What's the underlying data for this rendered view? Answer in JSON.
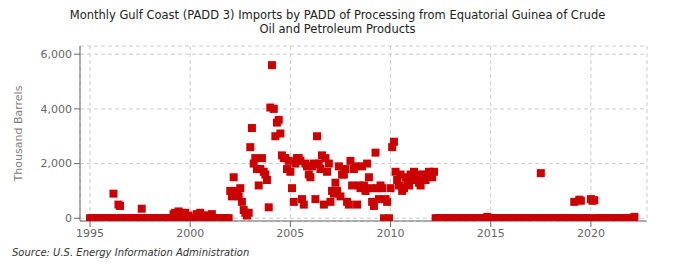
{
  "chart_data": {
    "type": "scatter",
    "title": "Monthly Gulf Coast (PADD 3) Imports by PADD of Processing from Equatorial Guinea of Crude\nOil and Petroleum Products",
    "ylabel": "Thousand Barrels",
    "annotations": [
      "Source: U.S. Energy Information Administration"
    ],
    "color": "#cc0000",
    "marker": "square",
    "grid": true,
    "xlim": [
      1994.5,
      2022.8
    ],
    "ylim": [
      -100,
      6300
    ],
    "xticks": [
      1995,
      2000,
      2005,
      2010,
      2015,
      2020
    ],
    "yticks": [
      0,
      {
        "value": 2000,
        "label": "2,000"
      },
      {
        "value": 4000,
        "label": "4,000"
      },
      {
        "value": 6000,
        "label": "6,000"
      }
    ],
    "x": [
      1995.0,
      1995.08,
      1995.17,
      1995.25,
      1995.33,
      1995.42,
      1995.5,
      1995.58,
      1995.67,
      1995.75,
      1995.83,
      1995.92,
      1996.0,
      1996.08,
      1996.17,
      1996.25,
      1996.33,
      1996.42,
      1996.5,
      1996.58,
      1996.67,
      1996.75,
      1996.83,
      1996.92,
      1997.0,
      1997.08,
      1997.17,
      1997.25,
      1997.33,
      1997.42,
      1997.5,
      1997.58,
      1997.67,
      1997.75,
      1997.83,
      1997.92,
      1998.0,
      1998.08,
      1998.17,
      1998.25,
      1998.33,
      1998.42,
      1998.5,
      1998.58,
      1998.67,
      1998.75,
      1998.83,
      1998.92,
      1999.0,
      1999.08,
      1999.17,
      1999.25,
      1999.33,
      1999.42,
      1999.5,
      1999.58,
      1999.67,
      1999.75,
      1999.83,
      1999.92,
      2000.0,
      2000.08,
      2000.17,
      2000.25,
      2000.33,
      2000.42,
      2000.5,
      2000.58,
      2000.67,
      2000.75,
      2000.83,
      2000.92,
      2001.0,
      2001.08,
      2001.17,
      2001.25,
      2001.33,
      2001.42,
      2001.5,
      2001.58,
      2001.67,
      2001.75,
      2001.83,
      2001.92,
      2002.0,
      2002.08,
      2002.17,
      2002.25,
      2002.33,
      2002.42,
      2002.5,
      2002.58,
      2002.67,
      2002.75,
      2002.83,
      2002.92,
      2003.0,
      2003.08,
      2003.17,
      2003.25,
      2003.33,
      2003.42,
      2003.5,
      2003.58,
      2003.67,
      2003.75,
      2003.83,
      2003.92,
      2004.0,
      2004.08,
      2004.17,
      2004.25,
      2004.33,
      2004.42,
      2004.5,
      2004.58,
      2004.67,
      2004.75,
      2004.83,
      2004.92,
      2005.0,
      2005.08,
      2005.17,
      2005.25,
      2005.33,
      2005.42,
      2005.5,
      2005.58,
      2005.67,
      2005.75,
      2005.83,
      2005.92,
      2006.0,
      2006.08,
      2006.17,
      2006.25,
      2006.33,
      2006.42,
      2006.5,
      2006.58,
      2006.67,
      2006.75,
      2006.83,
      2006.92,
      2007.0,
      2007.08,
      2007.17,
      2007.25,
      2007.33,
      2007.42,
      2007.5,
      2007.58,
      2007.67,
      2007.75,
      2007.83,
      2007.92,
      2008.0,
      2008.08,
      2008.17,
      2008.25,
      2008.33,
      2008.42,
      2008.5,
      2008.58,
      2008.67,
      2008.75,
      2008.83,
      2008.92,
      2009.0,
      2009.08,
      2009.17,
      2009.25,
      2009.33,
      2009.42,
      2009.5,
      2009.58,
      2009.67,
      2009.75,
      2009.83,
      2009.92,
      2010.0,
      2010.08,
      2010.17,
      2010.25,
      2010.33,
      2010.42,
      2010.5,
      2010.58,
      2010.67,
      2010.75,
      2010.83,
      2010.92,
      2011.0,
      2011.08,
      2011.17,
      2011.25,
      2011.33,
      2011.42,
      2011.5,
      2011.58,
      2011.67,
      2011.75,
      2011.83,
      2011.92,
      2012.0,
      2012.08,
      2012.17,
      2012.25,
      2012.33,
      2012.42,
      2012.5,
      2012.58,
      2012.67,
      2012.75,
      2012.83,
      2012.92,
      2013.0,
      2013.08,
      2013.17,
      2013.25,
      2013.33,
      2013.42,
      2013.5,
      2013.58,
      2013.67,
      2013.75,
      2013.83,
      2013.92,
      2014.0,
      2014.08,
      2014.17,
      2014.25,
      2014.33,
      2014.42,
      2014.5,
      2014.58,
      2014.67,
      2014.75,
      2014.83,
      2014.92,
      2015.0,
      2015.08,
      2015.17,
      2015.25,
      2015.33,
      2015.42,
      2015.5,
      2015.58,
      2015.67,
      2015.75,
      2015.83,
      2015.92,
      2016.0,
      2016.08,
      2016.17,
      2016.25,
      2016.33,
      2016.42,
      2016.5,
      2016.58,
      2016.67,
      2016.75,
      2016.83,
      2016.92,
      2017.0,
      2017.08,
      2017.17,
      2017.25,
      2017.33,
      2017.42,
      2017.5,
      2017.58,
      2017.67,
      2017.75,
      2017.83,
      2017.92,
      2018.0,
      2018.08,
      2018.17,
      2018.25,
      2018.33,
      2018.42,
      2018.5,
      2018.58,
      2018.67,
      2018.75,
      2018.83,
      2018.92,
      2019.0,
      2019.08,
      2019.17,
      2019.25,
      2019.33,
      2019.42,
      2019.5,
      2019.58,
      2019.67,
      2019.75,
      2019.83,
      2019.92,
      2020.0,
      2020.08,
      2020.17,
      2020.25,
      2020.33,
      2020.42,
      2020.5,
      2020.58,
      2020.67,
      2020.75,
      2020.83,
      2020.92,
      2021.0,
      2021.08,
      2021.17,
      2021.25,
      2021.33,
      2021.42,
      2021.5,
      2021.58,
      2021.67,
      2021.75,
      2021.83,
      2021.92,
      2022.0,
      2022.08,
      2022.17
    ],
    "values": [
      0,
      0,
      0,
      0,
      0,
      0,
      0,
      0,
      0,
      0,
      0,
      0,
      0,
      0,
      900,
      0,
      0,
      500,
      450,
      0,
      0,
      0,
      0,
      0,
      0,
      0,
      0,
      0,
      0,
      0,
      0,
      350,
      0,
      0,
      0,
      0,
      0,
      0,
      0,
      0,
      0,
      0,
      0,
      0,
      0,
      0,
      0,
      0,
      0,
      0,
      150,
      200,
      0,
      250,
      0,
      0,
      0,
      200,
      0,
      100,
      0,
      0,
      0,
      0,
      150,
      0,
      200,
      0,
      100,
      0,
      100,
      0,
      0,
      150,
      0,
      0,
      0,
      0,
      0,
      0,
      0,
      0,
      0,
      0,
      1000,
      800,
      1500,
      1000,
      900,
      800,
      1100,
      600,
      300,
      200,
      100,
      200,
      2600,
      3300,
      2000,
      2200,
      1800,
      1200,
      1800,
      2200,
      1700,
      1600,
      1400,
      400,
      4050,
      5600,
      4000,
      3000,
      3500,
      3600,
      3100,
      2300,
      2200,
      2200,
      1800,
      2100,
      1700,
      1100,
      600,
      2000,
      2200,
      2200,
      2100,
      700,
      500,
      2000,
      1900,
      1600,
      1500,
      1900,
      2000,
      700,
      3000,
      2000,
      1800,
      2300,
      500,
      2200,
      1700,
      2000,
      600,
      1000,
      900,
      1300,
      1000,
      1900,
      800,
      1600,
      1600,
      1800,
      600,
      500,
      2100,
      1200,
      1800,
      1900,
      500,
      1200,
      1100,
      1900,
      1200,
      1000,
      2000,
      1500,
      1100,
      600,
      450,
      2400,
      1100,
      700,
      1200,
      1100,
      0,
      700,
      600,
      0,
      1100,
      2600,
      2800,
      1700,
      1400,
      1200,
      1600,
      1000,
      1100,
      1500,
      1300,
      1200,
      1600,
      1400,
      1700,
      1500,
      1600,
      1300,
      1200,
      1500,
      1600,
      1400,
      1600,
      1700,
      1600,
      1500,
      1700,
      0,
      0,
      0,
      0,
      0,
      0,
      0,
      0,
      0,
      0,
      0,
      0,
      0,
      0,
      0,
      0,
      0,
      0,
      0,
      0,
      0,
      0,
      0,
      0,
      0,
      0,
      0,
      0,
      0,
      0,
      0,
      50,
      0,
      0,
      0,
      0,
      0,
      0,
      0,
      0,
      0,
      0,
      0,
      0,
      0,
      0,
      0,
      0,
      0,
      0,
      0,
      0,
      0,
      0,
      0,
      0,
      0,
      0,
      0,
      0,
      0,
      0,
      0,
      1650,
      0,
      0,
      0,
      0,
      0,
      0,
      0,
      0,
      0,
      0,
      0,
      0,
      0,
      0,
      0,
      0,
      0,
      0,
      0,
      600,
      0,
      0,
      680,
      640,
      0,
      0,
      0,
      0,
      0,
      700,
      640,
      660,
      0,
      0,
      0,
      0,
      0,
      0,
      0,
      0,
      0,
      0,
      0,
      0,
      0,
      0,
      0,
      0,
      0,
      0,
      0,
      0,
      0,
      0,
      0,
      50
    ]
  }
}
